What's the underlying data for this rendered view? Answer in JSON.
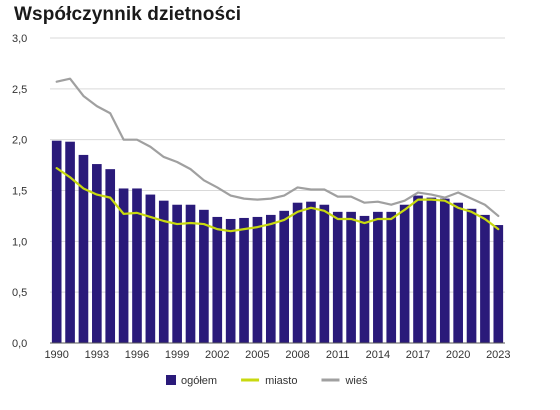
{
  "chart_data": {
    "type": "bar",
    "title": "Współczynnik dzietności",
    "xlabel": "",
    "ylabel": "",
    "ylim": [
      0,
      3.0
    ],
    "yticks": [
      "0,0",
      "0,5",
      "1,0",
      "1,5",
      "2,0",
      "2,5",
      "3,0"
    ],
    "ytick_values": [
      0,
      0.5,
      1.0,
      1.5,
      2.0,
      2.5,
      3.0
    ],
    "xtick_labels": [
      "1990",
      "1993",
      "1996",
      "1999",
      "2002",
      "2005",
      "2008",
      "2011",
      "2014",
      "2017",
      "2020",
      "2023"
    ],
    "grid": true,
    "legend_position": "bottom",
    "categories": [
      1990,
      1991,
      1992,
      1993,
      1994,
      1995,
      1996,
      1997,
      1998,
      1999,
      2000,
      2001,
      2002,
      2003,
      2004,
      2005,
      2006,
      2007,
      2008,
      2009,
      2010,
      2011,
      2012,
      2013,
      2014,
      2015,
      2016,
      2017,
      2018,
      2019,
      2020,
      2021,
      2022,
      2023
    ],
    "series": [
      {
        "name": "ogółem",
        "kind": "bar",
        "color": "#2a1a7a",
        "values": [
          1.99,
          1.98,
          1.85,
          1.76,
          1.71,
          1.52,
          1.52,
          1.46,
          1.4,
          1.36,
          1.36,
          1.31,
          1.24,
          1.22,
          1.23,
          1.24,
          1.26,
          1.3,
          1.38,
          1.39,
          1.36,
          1.29,
          1.29,
          1.25,
          1.29,
          1.29,
          1.36,
          1.45,
          1.43,
          1.42,
          1.38,
          1.32,
          1.26,
          1.16
        ]
      },
      {
        "name": "miasto",
        "kind": "line",
        "color": "#c8d90f",
        "values": [
          1.72,
          1.63,
          1.52,
          1.46,
          1.43,
          1.27,
          1.28,
          1.24,
          1.2,
          1.17,
          1.18,
          1.17,
          1.12,
          1.1,
          1.12,
          1.14,
          1.17,
          1.21,
          1.29,
          1.33,
          1.3,
          1.22,
          1.22,
          1.18,
          1.22,
          1.22,
          1.31,
          1.41,
          1.41,
          1.4,
          1.33,
          1.29,
          1.22,
          1.12
        ]
      },
      {
        "name": "wieś",
        "kind": "line",
        "color": "#a0a0a0",
        "values": [
          2.57,
          2.6,
          2.43,
          2.33,
          2.26,
          2.0,
          2.0,
          1.93,
          1.83,
          1.78,
          1.71,
          1.6,
          1.53,
          1.45,
          1.42,
          1.41,
          1.42,
          1.45,
          1.53,
          1.51,
          1.51,
          1.44,
          1.44,
          1.38,
          1.39,
          1.36,
          1.4,
          1.48,
          1.46,
          1.43,
          1.48,
          1.42,
          1.36,
          1.25
        ]
      }
    ]
  }
}
